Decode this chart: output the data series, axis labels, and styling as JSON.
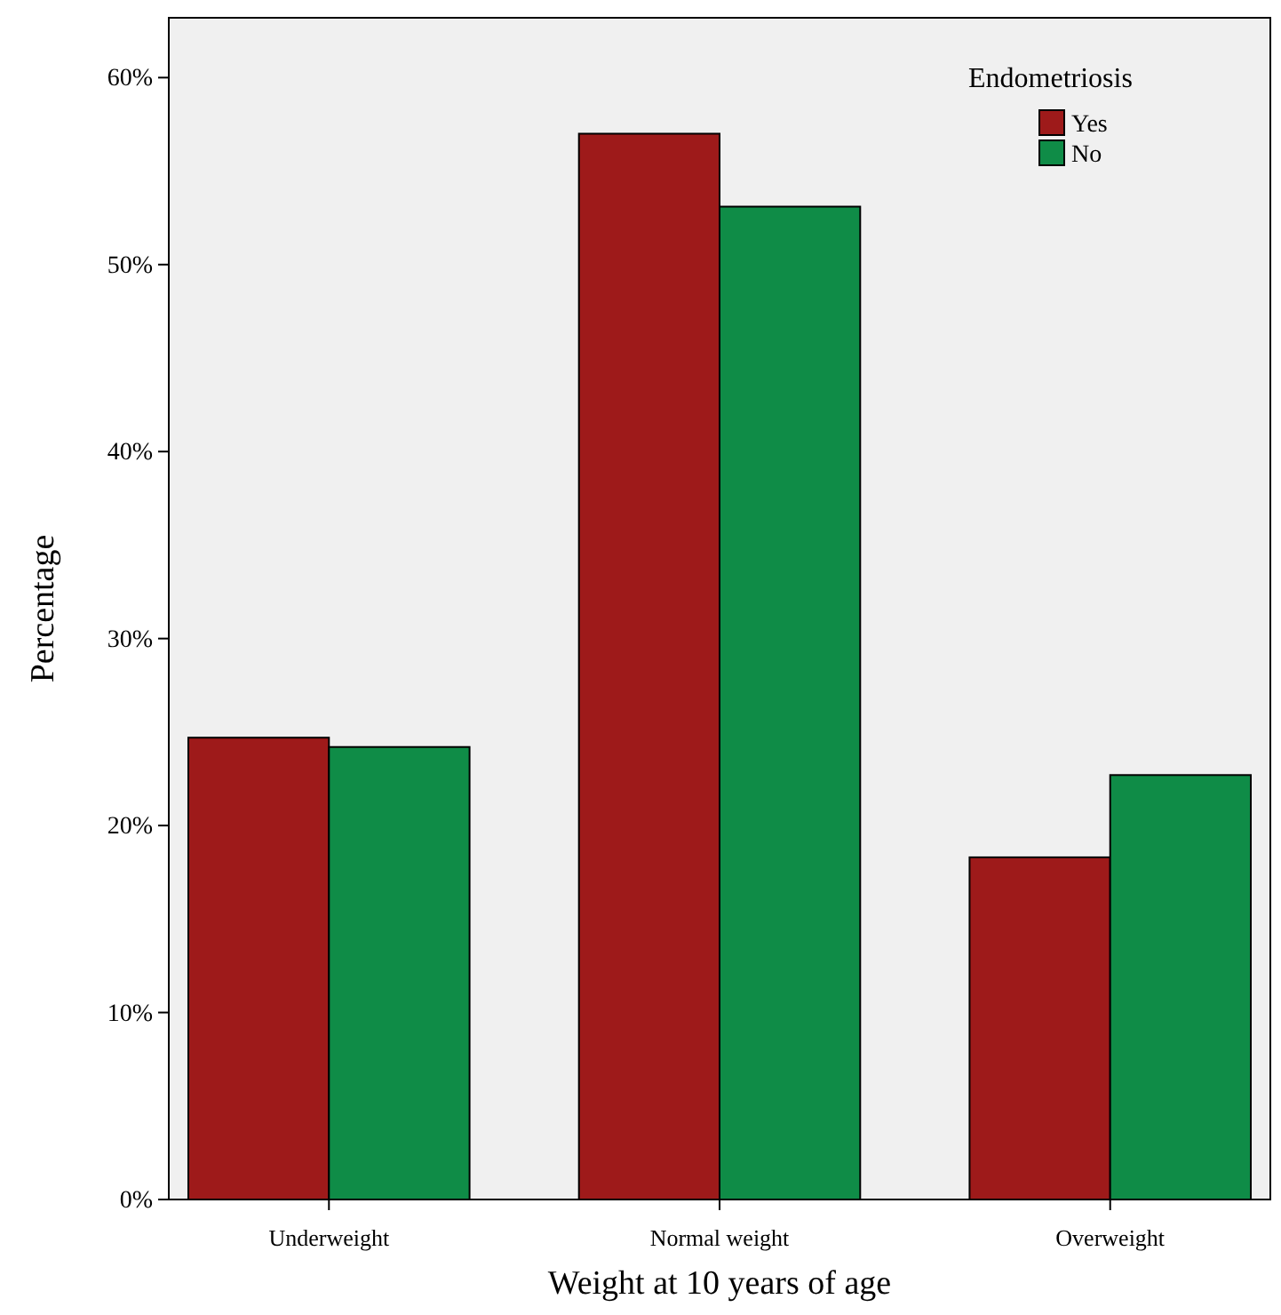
{
  "chart_data": {
    "type": "bar",
    "xlabel": "Weight at 10 years of age",
    "ylabel": "Percentage",
    "legend_title": "Endometriosis",
    "legend": "top right",
    "grid": false,
    "categories": [
      "Underweight",
      "Normal weight",
      "Overweight"
    ],
    "series": [
      {
        "name": "Yes",
        "color": "#9e1a1a",
        "values": [
          24.7,
          57.0,
          18.3
        ]
      },
      {
        "name": "No",
        "color": "#0f8c47",
        "values": [
          24.2,
          53.1,
          22.7
        ]
      }
    ],
    "ylim": [
      0,
      63.2
    ],
    "yticks": [
      {
        "value": 0,
        "label": "0%"
      },
      {
        "value": 10,
        "label": "10%"
      },
      {
        "value": 20,
        "label": "20%"
      },
      {
        "value": 30,
        "label": "30%"
      },
      {
        "value": 40,
        "label": "40%"
      },
      {
        "value": 50,
        "label": "50%"
      },
      {
        "value": 60,
        "label": "60%"
      }
    ]
  }
}
